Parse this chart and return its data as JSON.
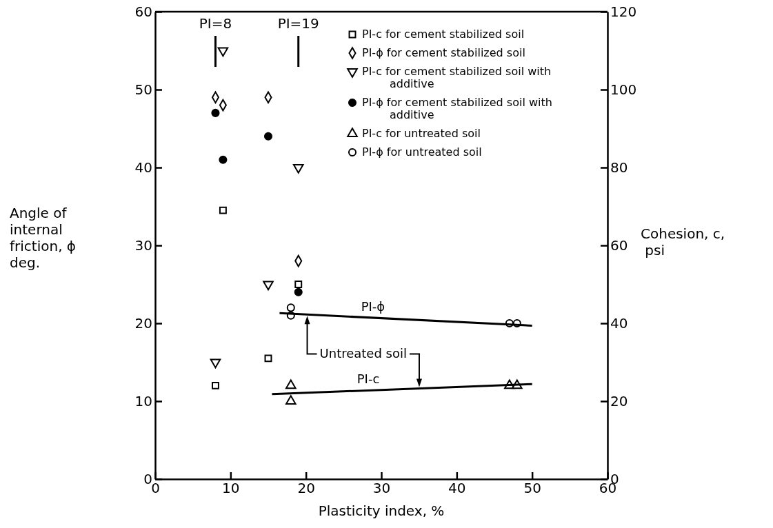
{
  "chart_data": {
    "type": "scatter",
    "xlabel": "Plasticity index, %",
    "ylabel": "Angle of\ninternal\nfriction, ϕ\ndeg.",
    "y2label": "Cohesion, c,\n psi",
    "xlim": [
      0,
      60
    ],
    "xticks": [
      0,
      10,
      20,
      30,
      40,
      50,
      60
    ],
    "ylim": [
      0,
      60
    ],
    "yticks": [
      0,
      10,
      20,
      30,
      40,
      50,
      60
    ],
    "y2lim": [
      0,
      120
    ],
    "y2ticks": [
      0,
      20,
      40,
      60,
      80,
      100,
      120
    ],
    "legend": "top right",
    "series": [
      {
        "name": "PI-c for cement stabilized soil",
        "color": "#000000",
        "marker": "square",
        "axis": "y2",
        "x": [
          8,
          9,
          15,
          19
        ],
        "values": [
          24,
          69,
          31,
          50
        ]
      },
      {
        "name": "PI-ϕ for cement stabilized soil",
        "color": "#000000",
        "marker": "diamond",
        "x": [
          8,
          9,
          15,
          19
        ],
        "values": [
          49,
          48,
          49,
          28
        ]
      },
      {
        "name": "PI-c for cement stabilized soil with additive",
        "color": "#000000",
        "marker": "triangle-down",
        "axis": "y2",
        "x": [
          8,
          9,
          15,
          19
        ],
        "values": [
          30,
          110,
          50,
          80
        ]
      },
      {
        "name": "PI-ϕ for cement stabilized soil with additive",
        "color": "#000000",
        "marker": "circle-filled",
        "x": [
          8,
          9,
          15,
          19
        ],
        "values": [
          47,
          41,
          44,
          24
        ]
      },
      {
        "name": "PI-c for untreated soil",
        "color": "#000000",
        "marker": "triangle",
        "axis": "y2",
        "x": [
          18,
          18,
          47,
          48
        ],
        "values": [
          24,
          20,
          24,
          24
        ]
      },
      {
        "name": "PI-ϕ for untreated soil",
        "color": "#000000",
        "marker": "circle",
        "x": [
          18,
          18,
          47,
          48
        ],
        "values": [
          22,
          21,
          20,
          20
        ]
      },
      {
        "name": "PI-ϕ",
        "type": "line",
        "color": "#000000",
        "x": [
          16.5,
          50
        ],
        "values": [
          21.3,
          19.7
        ]
      },
      {
        "name": "PI-c",
        "type": "line",
        "color": "#000000",
        "axis": "y2",
        "x": [
          15.5,
          50
        ],
        "values": [
          21.8,
          24.4
        ]
      }
    ],
    "ref_lines": [
      {
        "axis": "x",
        "value": 8,
        "label": "PI=8"
      },
      {
        "axis": "x",
        "value": 19,
        "label": "PI=19"
      }
    ],
    "annotations": [
      "Untreated soil"
    ]
  }
}
